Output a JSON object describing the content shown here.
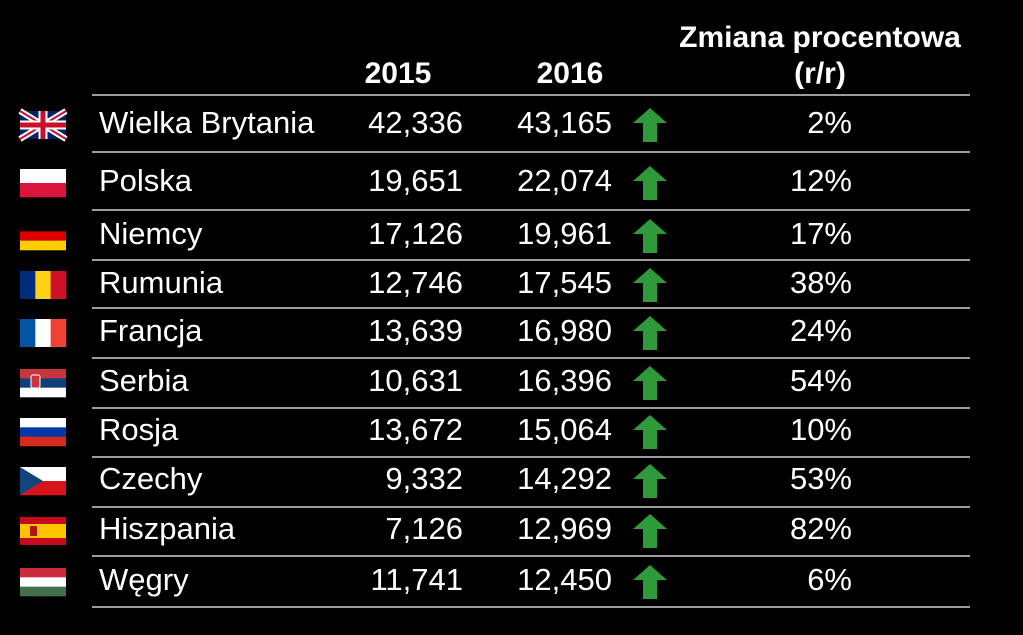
{
  "table": {
    "headers": [
      "2015",
      "2016",
      "Zmiana procentowa",
      "(r/r)"
    ],
    "rows": [
      [
        "Wielka Brytania",
        "42,336",
        "43,165",
        "2%"
      ],
      [
        "Polska",
        "19,651",
        "22,074",
        "12%"
      ],
      [
        "Niemcy",
        "17,126",
        "19,961",
        "17%"
      ],
      [
        "Rumunia",
        "12,746",
        "17,545",
        "38%"
      ],
      [
        "Francja",
        "13,639",
        "16,980",
        "24%"
      ],
      [
        "Serbia",
        "10,631",
        "16,396",
        "54%"
      ],
      [
        "Rosja",
        "13,672",
        "15,064",
        "10%"
      ],
      [
        "Czechy",
        "9,332",
        "14,292",
        "53%"
      ],
      [
        "Hiszpania",
        "7,126",
        "12,969",
        "82%"
      ],
      [
        "Węgry",
        "11,741",
        "12,450",
        "6%"
      ]
    ]
  }
}
